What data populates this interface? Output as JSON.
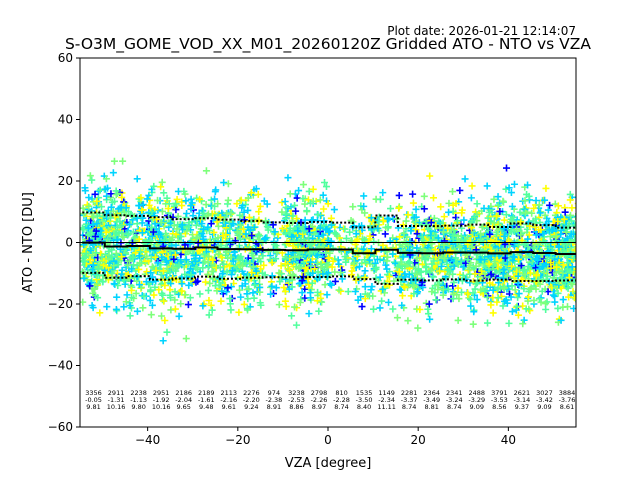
{
  "chart_data": {
    "type": "scatter",
    "title": "S-O3M_GOME_VOD_XX_M01_20260120Z Gridded ATO - NTO vs VZA",
    "plot_date": "Plot date: 2026-01-21 12:14:07",
    "xlabel": "VZA [degree]",
    "ylabel": "ATO - NTO [DU]",
    "xlim": [
      -55,
      55
    ],
    "ylim": [
      -60,
      60
    ],
    "xticks": [
      -40,
      -20,
      0,
      20,
      40
    ],
    "yticks": [
      -60,
      -40,
      -20,
      0,
      20,
      40,
      60
    ],
    "xtick_labels": [
      "−40",
      "−20",
      "0",
      "20",
      "40"
    ],
    "ytick_labels": [
      "−60",
      "−40",
      "−20",
      "0",
      "20",
      "40",
      "60"
    ],
    "marker": "+",
    "point_colors": [
      "#0000ff",
      "#00d4ff",
      "#7dff7a",
      "#ffff00",
      "#52ff9e"
    ],
    "bin_centers": [
      -52,
      -47,
      -42,
      -37,
      -32,
      -27,
      -22,
      -17,
      -12,
      -7,
      -2,
      3,
      8,
      13,
      18,
      23,
      28,
      33,
      38,
      43,
      48,
      53
    ],
    "counts": [
      "3356",
      "2911",
      "2238",
      "2951",
      "2186",
      "2189",
      "2113",
      "2276",
      "974",
      "3238",
      "2798",
      "810",
      "1535",
      "1149",
      "2281",
      "2364",
      "2341",
      "2488",
      "3791",
      "2621",
      "3027",
      "3884"
    ],
    "means": [
      "-0.05",
      "-1.31",
      "-1.13",
      "-1.92",
      "-2.04",
      "-1.61",
      "-2.16",
      "-2.20",
      "-2.38",
      "-2.53",
      "-2.26",
      "-2.28",
      "-3.50",
      "-2.34",
      "-3.37",
      "-3.49",
      "-3.24",
      "-3.29",
      "-3.53",
      "-3.14",
      "-3.42",
      "-3.76"
    ],
    "stds": [
      "9.81",
      "10.16",
      "9.80",
      "10.16",
      "9.65",
      "9.48",
      "9.61",
      "9.24",
      "8.91",
      "8.86",
      "8.97",
      "8.74",
      "8.40",
      "11.11",
      "8.74",
      "8.81",
      "8.74",
      "9.09",
      "8.56",
      "9.37",
      "9.09",
      "8.61"
    ],
    "mean_line": {
      "x": [
        -52,
        -47,
        -42,
        -37,
        -32,
        -27,
        -22,
        -17,
        -12,
        -7,
        -2,
        3,
        8,
        13,
        18,
        23,
        28,
        33,
        38,
        43,
        48,
        53
      ],
      "y": [
        -0.05,
        -1.31,
        -1.13,
        -1.92,
        -2.04,
        -1.61,
        -2.16,
        -2.2,
        -2.38,
        -2.53,
        -2.26,
        -2.28,
        -3.5,
        -2.34,
        -3.37,
        -3.49,
        -3.24,
        -3.29,
        -3.53,
        -3.14,
        -3.42,
        -3.76
      ]
    },
    "std_upper": [
      9.76,
      8.85,
      8.67,
      8.24,
      7.61,
      7.87,
      7.45,
      7.04,
      6.53,
      6.33,
      6.71,
      6.46,
      4.9,
      8.77,
      5.37,
      5.32,
      5.5,
      5.8,
      5.03,
      6.23,
      5.67,
      4.85
    ],
    "std_lower": [
      -9.86,
      -11.47,
      -10.93,
      -12.08,
      -11.69,
      -11.09,
      -11.77,
      -11.44,
      -11.29,
      -11.39,
      -11.23,
      -11.02,
      -11.9,
      -13.45,
      -12.11,
      -12.3,
      -11.98,
      -12.38,
      -12.09,
      -12.51,
      -12.51,
      -12.37
    ]
  }
}
